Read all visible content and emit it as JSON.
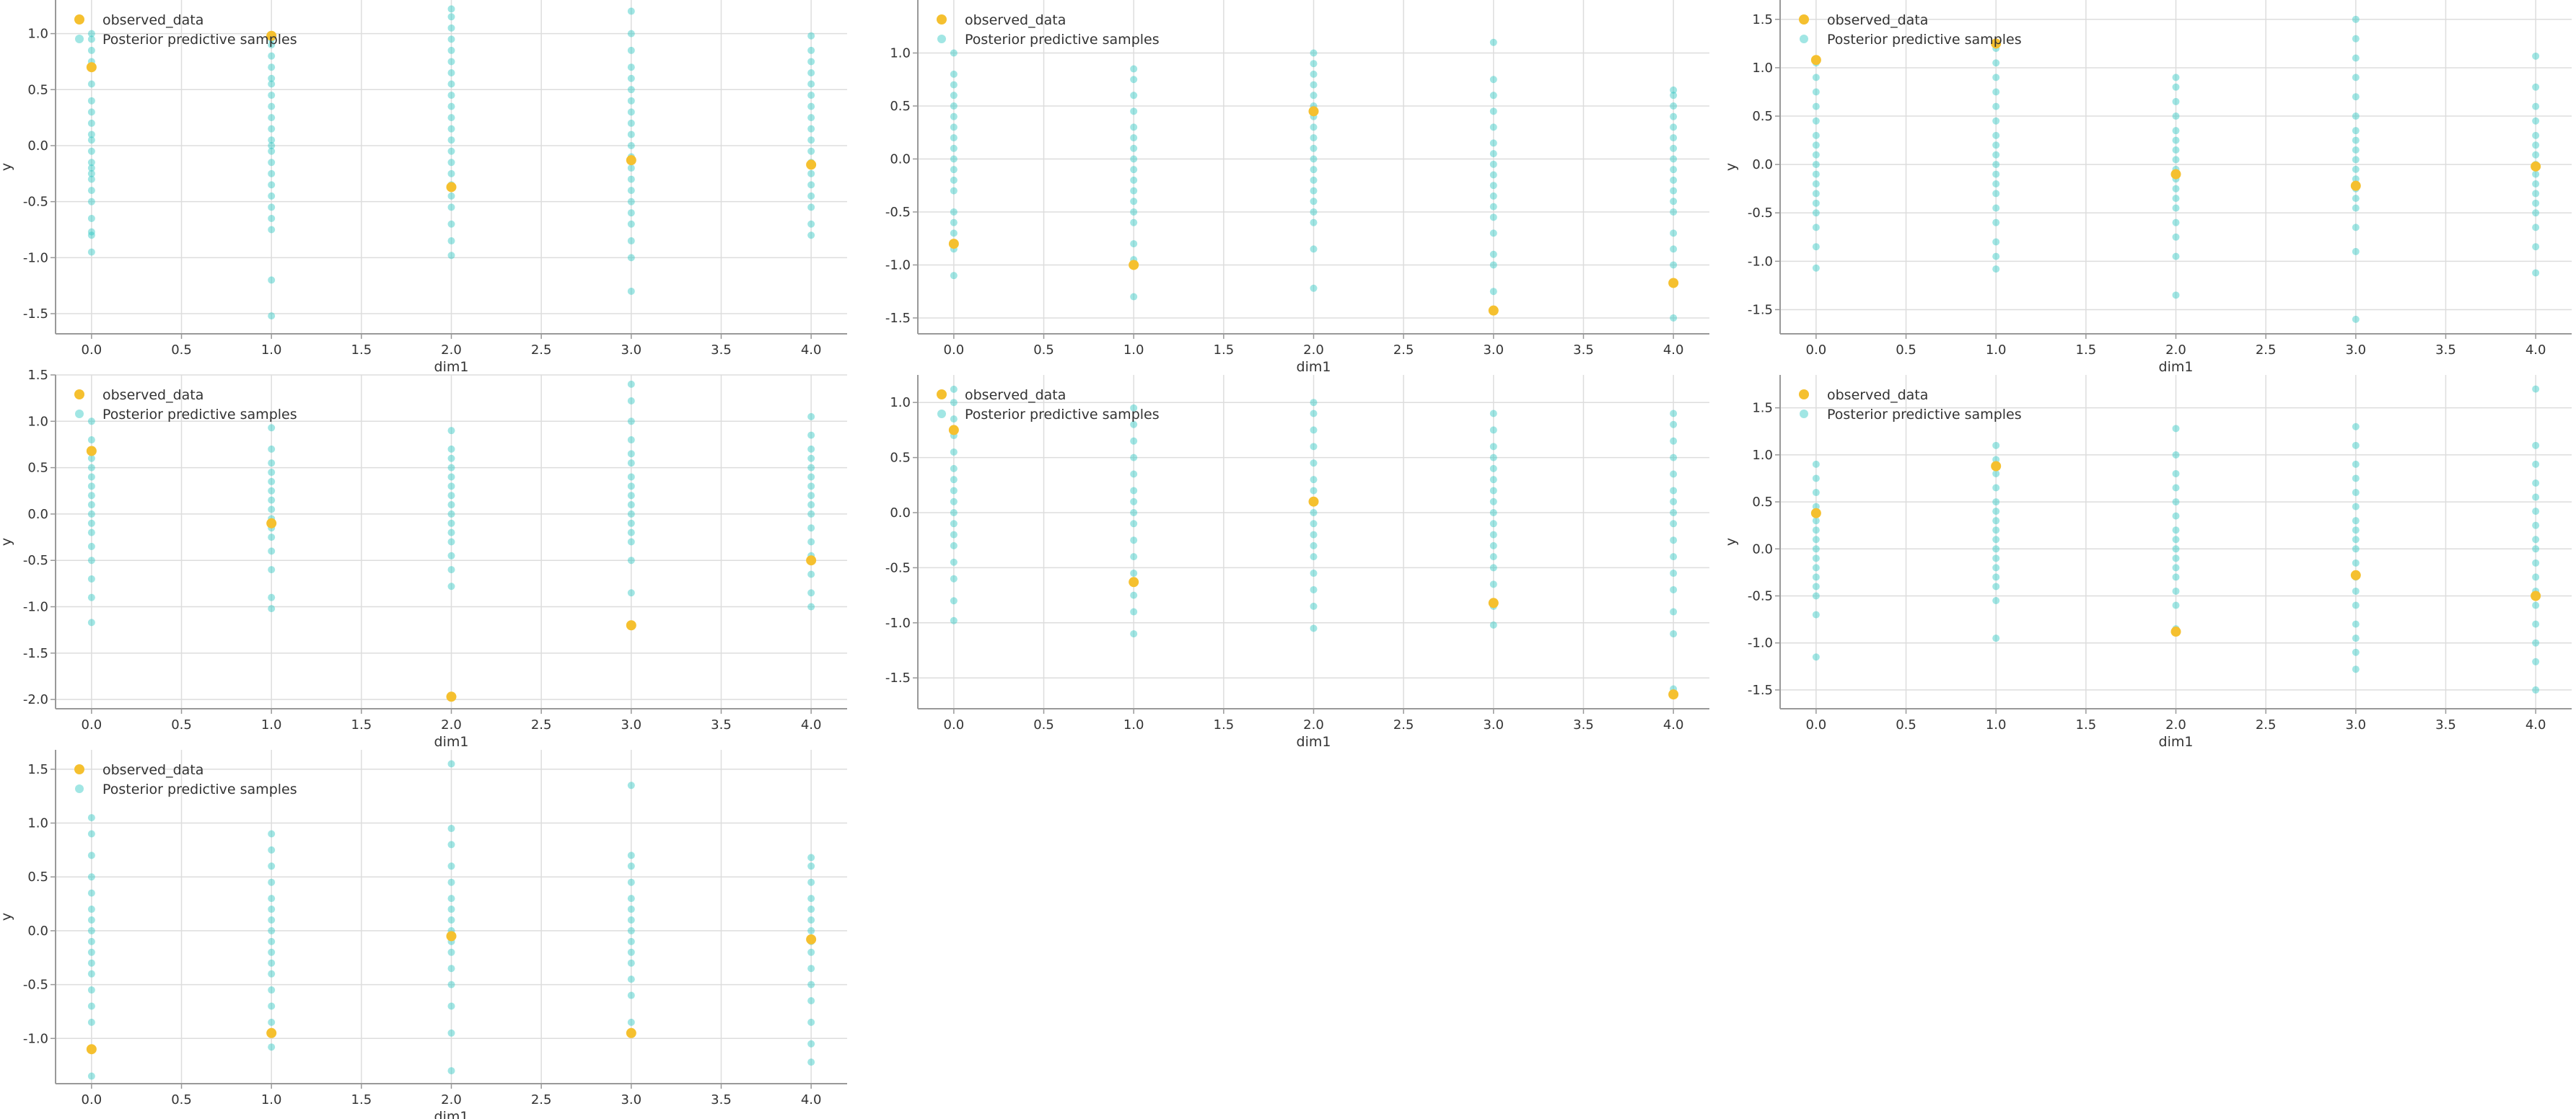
{
  "chart_data": [
    {
      "type": "scatter",
      "xlabel": "dim1",
      "ylabel": "y",
      "xlim": [
        -0.2,
        4.2
      ],
      "ylim": [
        -1.68,
        1.3
      ],
      "xticks": [
        "0.0",
        "0.5",
        "1.0",
        "1.5",
        "2.0",
        "2.5",
        "3.0",
        "3.5",
        "4.0"
      ],
      "yticks": [
        "-1.5",
        "-1.0",
        "-0.5",
        "0.0",
        "0.5",
        "1.0"
      ],
      "legend": [
        "observed_data",
        "Posterior predictive samples"
      ],
      "observed": [
        [
          0,
          0.7
        ],
        [
          1,
          0.98
        ],
        [
          2,
          -0.37
        ],
        [
          3,
          -0.13
        ],
        [
          4,
          -0.17
        ]
      ],
      "samples": [
        [
          -0.95,
          -0.8,
          -0.77,
          -0.65,
          -0.5,
          -0.4,
          -0.3,
          -0.25,
          -0.2,
          -0.15,
          -0.05,
          0.05,
          0.1,
          0.2,
          0.3,
          0.4,
          0.55,
          0.75,
          0.85,
          0.95,
          1.0
        ],
        [
          -1.52,
          -1.2,
          -0.75,
          -0.65,
          -0.55,
          -0.45,
          -0.35,
          -0.25,
          -0.15,
          -0.05,
          0.0,
          0.05,
          0.15,
          0.25,
          0.35,
          0.45,
          0.55,
          0.6,
          0.7,
          0.8,
          0.9,
          0.95
        ],
        [
          -0.98,
          -0.85,
          -0.7,
          -0.55,
          -0.45,
          -0.35,
          -0.25,
          -0.15,
          -0.05,
          0.05,
          0.15,
          0.25,
          0.35,
          0.45,
          0.55,
          0.65,
          0.75,
          0.85,
          0.95,
          1.05,
          1.15,
          1.22
        ],
        [
          -1.3,
          -1.0,
          -0.85,
          -0.7,
          -0.6,
          -0.5,
          -0.4,
          -0.3,
          -0.2,
          -0.1,
          0.0,
          0.1,
          0.2,
          0.3,
          0.4,
          0.5,
          0.6,
          0.7,
          0.85,
          1.0,
          1.2
        ],
        [
          -0.8,
          -0.7,
          -0.55,
          -0.45,
          -0.35,
          -0.25,
          -0.15,
          -0.05,
          0.05,
          0.15,
          0.25,
          0.35,
          0.45,
          0.55,
          0.65,
          0.75,
          0.85,
          0.98
        ]
      ]
    },
    {
      "type": "scatter",
      "xlabel": "dim1",
      "ylabel": "",
      "xlim": [
        -0.2,
        4.2
      ],
      "ylim": [
        -1.65,
        1.5
      ],
      "xticks": [
        "0.0",
        "0.5",
        "1.0",
        "1.5",
        "2.0",
        "2.5",
        "3.0",
        "3.5",
        "4.0"
      ],
      "yticks": [
        "-1.5",
        "-1.0",
        "-0.5",
        "0.0",
        "0.5",
        "1.0"
      ],
      "legend": [
        "observed_data",
        "Posterior predictive samples"
      ],
      "observed": [
        [
          0,
          -0.8
        ],
        [
          1,
          -1.0
        ],
        [
          2,
          0.45
        ],
        [
          3,
          -1.43
        ],
        [
          4,
          -1.17
        ]
      ],
      "samples": [
        [
          -1.1,
          -0.85,
          -0.7,
          -0.6,
          -0.5,
          -0.3,
          -0.2,
          -0.1,
          0.0,
          0.1,
          0.2,
          0.3,
          0.4,
          0.5,
          0.6,
          0.7,
          0.8,
          1.0
        ],
        [
          -1.3,
          -0.95,
          -0.8,
          -0.6,
          -0.5,
          -0.4,
          -0.3,
          -0.2,
          -0.1,
          0.0,
          0.1,
          0.2,
          0.3,
          0.45,
          0.6,
          0.75,
          0.85
        ],
        [
          -1.22,
          -0.85,
          -0.6,
          -0.5,
          -0.4,
          -0.3,
          -0.2,
          -0.1,
          0.0,
          0.1,
          0.2,
          0.3,
          0.4,
          0.5,
          0.6,
          0.7,
          0.8,
          0.9,
          1.0
        ],
        [
          -1.25,
          -1.0,
          -0.9,
          -0.7,
          -0.55,
          -0.45,
          -0.35,
          -0.25,
          -0.15,
          -0.05,
          0.05,
          0.15,
          0.3,
          0.45,
          0.6,
          0.75,
          1.1
        ],
        [
          -1.5,
          -1.0,
          -0.85,
          -0.7,
          -0.5,
          -0.4,
          -0.3,
          -0.2,
          -0.1,
          0.0,
          0.1,
          0.2,
          0.3,
          0.4,
          0.5,
          0.6,
          0.65
        ]
      ]
    },
    {
      "type": "scatter",
      "xlabel": "dim1",
      "ylabel": "y",
      "xlim": [
        -0.2,
        4.2
      ],
      "ylim": [
        -1.75,
        1.7
      ],
      "xticks": [
        "0.0",
        "0.5",
        "1.0",
        "1.5",
        "2.0",
        "2.5",
        "3.0",
        "3.5",
        "4.0"
      ],
      "yticks": [
        "-1.5",
        "-1.0",
        "-0.5",
        "0.0",
        "0.5",
        "1.0",
        "1.5"
      ],
      "legend": [
        "observed_data",
        "Posterior predictive samples"
      ],
      "observed": [
        [
          0,
          1.08
        ],
        [
          1,
          1.25
        ],
        [
          2,
          -0.1
        ],
        [
          3,
          -0.22
        ],
        [
          4,
          -0.02
        ]
      ],
      "samples": [
        [
          -1.07,
          -0.85,
          -0.65,
          -0.5,
          -0.4,
          -0.3,
          -0.2,
          -0.1,
          0.0,
          0.1,
          0.2,
          0.3,
          0.45,
          0.6,
          0.75,
          0.9,
          1.05
        ],
        [
          -1.08,
          -0.95,
          -0.8,
          -0.6,
          -0.45,
          -0.3,
          -0.2,
          -0.1,
          0.0,
          0.1,
          0.2,
          0.3,
          0.45,
          0.6,
          0.75,
          0.9,
          1.05,
          1.2
        ],
        [
          -1.35,
          -0.95,
          -0.75,
          -0.6,
          -0.45,
          -0.35,
          -0.25,
          -0.15,
          -0.05,
          0.05,
          0.15,
          0.25,
          0.35,
          0.5,
          0.65,
          0.8,
          0.9
        ],
        [
          -1.6,
          -0.9,
          -0.65,
          -0.45,
          -0.35,
          -0.25,
          -0.15,
          -0.05,
          0.05,
          0.15,
          0.25,
          0.35,
          0.5,
          0.7,
          0.9,
          1.1,
          1.3,
          1.5
        ],
        [
          -1.12,
          -0.85,
          -0.65,
          -0.5,
          -0.4,
          -0.3,
          -0.2,
          -0.1,
          0.0,
          0.1,
          0.2,
          0.3,
          0.45,
          0.6,
          0.8,
          1.12
        ]
      ]
    },
    {
      "type": "scatter",
      "xlabel": "dim1",
      "ylabel": "y",
      "xlim": [
        -0.2,
        4.2
      ],
      "ylim": [
        -2.1,
        1.5
      ],
      "xticks": [
        "0.0",
        "0.5",
        "1.0",
        "1.5",
        "2.0",
        "2.5",
        "3.0",
        "3.5",
        "4.0"
      ],
      "yticks": [
        "-2.0",
        "-1.5",
        "-1.0",
        "-0.5",
        "0.0",
        "0.5",
        "1.0",
        "1.5"
      ],
      "legend": [
        "observed_data",
        "Posterior predictive samples"
      ],
      "observed": [
        [
          0,
          0.68
        ],
        [
          1,
          -0.1
        ],
        [
          2,
          -1.97
        ],
        [
          3,
          -1.2
        ],
        [
          4,
          -0.5
        ]
      ],
      "samples": [
        [
          -1.17,
          -0.9,
          -0.7,
          -0.5,
          -0.35,
          -0.2,
          -0.1,
          0.0,
          0.1,
          0.2,
          0.3,
          0.4,
          0.5,
          0.6,
          0.8,
          1.0
        ],
        [
          -1.02,
          -0.9,
          -0.6,
          -0.4,
          -0.25,
          -0.15,
          -0.05,
          0.05,
          0.15,
          0.25,
          0.35,
          0.45,
          0.55,
          0.7,
          0.93
        ],
        [
          -0.78,
          -0.6,
          -0.45,
          -0.3,
          -0.2,
          -0.1,
          0.0,
          0.1,
          0.2,
          0.3,
          0.4,
          0.5,
          0.6,
          0.7,
          0.9
        ],
        [
          -0.85,
          -0.5,
          -0.3,
          -0.2,
          -0.1,
          0.0,
          0.1,
          0.2,
          0.3,
          0.4,
          0.55,
          0.65,
          0.8,
          1.0,
          1.22,
          1.4
        ],
        [
          -1.0,
          -0.85,
          -0.65,
          -0.45,
          -0.3,
          -0.15,
          0.0,
          0.1,
          0.2,
          0.3,
          0.4,
          0.5,
          0.6,
          0.7,
          0.85,
          1.05
        ]
      ]
    },
    {
      "type": "scatter",
      "xlabel": "dim1",
      "ylabel": "",
      "xlim": [
        -0.2,
        4.2
      ],
      "ylim": [
        -1.78,
        1.25
      ],
      "xticks": [
        "0.0",
        "0.5",
        "1.0",
        "1.5",
        "2.0",
        "2.5",
        "3.0",
        "3.5",
        "4.0"
      ],
      "yticks": [
        "-1.5",
        "-1.0",
        "-0.5",
        "0.0",
        "0.5",
        "1.0"
      ],
      "legend": [
        "observed_data",
        "Posterior predictive samples"
      ],
      "observed": [
        [
          0,
          0.75
        ],
        [
          1,
          -0.63
        ],
        [
          2,
          0.1
        ],
        [
          3,
          -0.82
        ],
        [
          4,
          -1.65
        ]
      ],
      "samples": [
        [
          -0.98,
          -0.8,
          -0.6,
          -0.45,
          -0.3,
          -0.2,
          -0.1,
          0.0,
          0.1,
          0.2,
          0.3,
          0.4,
          0.55,
          0.7,
          0.85,
          1.0,
          1.12
        ],
        [
          -1.1,
          -0.9,
          -0.75,
          -0.55,
          -0.4,
          -0.25,
          -0.1,
          0.0,
          0.1,
          0.2,
          0.35,
          0.5,
          0.65,
          0.8,
          0.95
        ],
        [
          -1.05,
          -0.85,
          -0.7,
          -0.55,
          -0.4,
          -0.3,
          -0.2,
          -0.1,
          0.0,
          0.1,
          0.2,
          0.3,
          0.45,
          0.6,
          0.75,
          0.9,
          1.0
        ],
        [
          -1.02,
          -0.85,
          -0.65,
          -0.5,
          -0.4,
          -0.3,
          -0.2,
          -0.1,
          0.0,
          0.1,
          0.2,
          0.3,
          0.4,
          0.5,
          0.6,
          0.75,
          0.9
        ],
        [
          -1.6,
          -1.1,
          -0.9,
          -0.7,
          -0.55,
          -0.4,
          -0.25,
          -0.1,
          0.0,
          0.1,
          0.2,
          0.35,
          0.5,
          0.65,
          0.8,
          0.9
        ]
      ]
    },
    {
      "type": "scatter",
      "xlabel": "dim1",
      "ylabel": "y",
      "xlim": [
        -0.2,
        4.2
      ],
      "ylim": [
        -1.7,
        1.85
      ],
      "xticks": [
        "0.0",
        "0.5",
        "1.0",
        "1.5",
        "2.0",
        "2.5",
        "3.0",
        "3.5",
        "4.0"
      ],
      "yticks": [
        "-1.5",
        "-1.0",
        "-0.5",
        "0.0",
        "0.5",
        "1.0",
        "1.5"
      ],
      "legend": [
        "observed_data",
        "Posterior predictive samples"
      ],
      "observed": [
        [
          0,
          0.38
        ],
        [
          1,
          0.88
        ],
        [
          2,
          -0.88
        ],
        [
          3,
          -0.28
        ],
        [
          4,
          -0.5
        ]
      ],
      "samples": [
        [
          -1.15,
          -0.7,
          -0.5,
          -0.4,
          -0.3,
          -0.2,
          -0.1,
          0.0,
          0.1,
          0.2,
          0.3,
          0.45,
          0.6,
          0.75,
          0.9
        ],
        [
          -0.95,
          -0.55,
          -0.4,
          -0.3,
          -0.2,
          -0.1,
          0.0,
          0.1,
          0.2,
          0.3,
          0.4,
          0.5,
          0.65,
          0.8,
          0.95,
          1.1
        ],
        [
          -0.85,
          -0.6,
          -0.45,
          -0.3,
          -0.2,
          -0.1,
          0.0,
          0.1,
          0.2,
          0.35,
          0.5,
          0.65,
          0.8,
          1.0,
          1.28
        ],
        [
          -1.28,
          -1.1,
          -0.95,
          -0.8,
          -0.6,
          -0.45,
          -0.3,
          -0.15,
          0.0,
          0.1,
          0.2,
          0.3,
          0.45,
          0.6,
          0.75,
          0.9,
          1.1,
          1.3
        ],
        [
          -1.5,
          -1.2,
          -1.0,
          -0.8,
          -0.6,
          -0.45,
          -0.3,
          -0.15,
          0.0,
          0.1,
          0.25,
          0.4,
          0.55,
          0.7,
          0.9,
          1.1,
          1.7
        ]
      ]
    },
    {
      "type": "scatter",
      "xlabel": "dim1",
      "ylabel": "y",
      "xlim": [
        -0.2,
        4.2
      ],
      "ylim": [
        -1.42,
        1.68
      ],
      "xticks": [
        "0.0",
        "0.5",
        "1.0",
        "1.5",
        "2.0",
        "2.5",
        "3.0",
        "3.5",
        "4.0"
      ],
      "yticks": [
        "-1.0",
        "-0.5",
        "0.0",
        "0.5",
        "1.0",
        "1.5"
      ],
      "legend": [
        "observed_data",
        "Posterior predictive samples"
      ],
      "observed": [
        [
          0,
          -1.1
        ],
        [
          1,
          -0.95
        ],
        [
          2,
          -0.05
        ],
        [
          3,
          -0.95
        ],
        [
          4,
          -0.08
        ]
      ],
      "samples": [
        [
          -1.35,
          -0.85,
          -0.7,
          -0.55,
          -0.4,
          -0.3,
          -0.2,
          -0.1,
          0.0,
          0.1,
          0.2,
          0.35,
          0.5,
          0.7,
          0.9,
          1.05
        ],
        [
          -1.08,
          -0.85,
          -0.7,
          -0.55,
          -0.4,
          -0.3,
          -0.2,
          -0.1,
          0.0,
          0.1,
          0.2,
          0.3,
          0.45,
          0.6,
          0.75,
          0.9
        ],
        [
          -1.3,
          -0.95,
          -0.7,
          -0.5,
          -0.35,
          -0.2,
          -0.1,
          0.0,
          0.1,
          0.2,
          0.3,
          0.45,
          0.6,
          0.8,
          0.95,
          1.55
        ],
        [
          -0.85,
          -0.6,
          -0.45,
          -0.3,
          -0.2,
          -0.1,
          0.0,
          0.1,
          0.2,
          0.3,
          0.45,
          0.6,
          0.7,
          1.35
        ],
        [
          -1.22,
          -1.05,
          -0.85,
          -0.65,
          -0.5,
          -0.35,
          -0.2,
          -0.1,
          0.0,
          0.1,
          0.2,
          0.3,
          0.45,
          0.6,
          0.68
        ]
      ]
    }
  ],
  "colors": {
    "observed": "#f5c02f",
    "samples": "#2fc7c3",
    "axis": "#999999",
    "grid": "#dddddd",
    "text": "#333333"
  }
}
